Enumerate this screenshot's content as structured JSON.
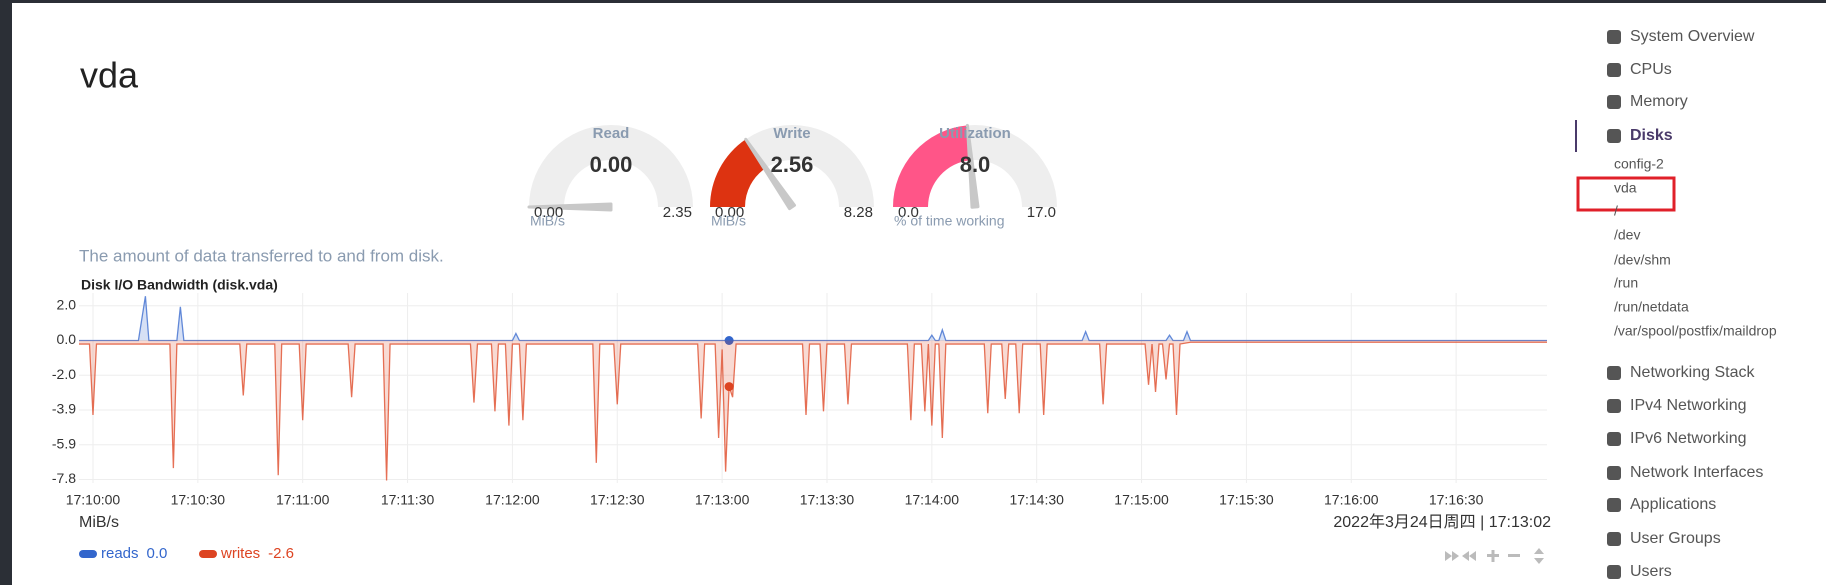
{
  "page": {
    "title": "vda",
    "description": "The amount of data transferred to and from disk.",
    "timestamp": "2022年3月24日周四 | 17:13:02"
  },
  "gauges": [
    {
      "title": "Read",
      "value": 0,
      "value_label": "0.00",
      "min": 0,
      "min_label": "0.00",
      "max": 2.35,
      "units": "MiB/s",
      "color": "#3366cc"
    },
    {
      "title": "Write",
      "value": 2.56,
      "min": 0,
      "min_label": "0.00",
      "max": 8.28,
      "units": "MiB/s",
      "color": "#dd3311"
    },
    {
      "title": "Utilization",
      "value": 8,
      "value_label": "8.0",
      "min": 0,
      "min_label": "0.0",
      "max": 17,
      "max_label": "17.0",
      "units": "% of time working",
      "color": "#ff5588"
    }
  ],
  "chart_data": {
    "type": "area",
    "title": "Disk I/O Bandwidth (disk.vda)",
    "y_label": "MiB/s",
    "xlim": [
      "17:09:56",
      "17:16:56"
    ],
    "xticks": [
      "17:10:00",
      "17:10:30",
      "17:11:00",
      "17:11:30",
      "17:12:00",
      "17:12:30",
      "17:13:00",
      "17:13:30",
      "17:14:00",
      "17:14:30",
      "17:15:00",
      "17:15:30",
      "17:16:00",
      "17:16:30"
    ],
    "ylim": [
      -8.04,
      2.68
    ],
    "yticks": [
      {
        "value": 1.96,
        "label": "2.0"
      },
      {
        "value": 0,
        "label": "0.0"
      },
      {
        "value": -1.96,
        "label": "-2.0"
      },
      {
        "value": -3.92,
        "label": "-3.9"
      },
      {
        "value": -5.88,
        "label": "-5.9"
      },
      {
        "value": -7.84,
        "label": "-7.8"
      }
    ],
    "grid": true,
    "series": [
      {
        "name": "reads",
        "color": "#3366cc",
        "current": 0,
        "current_label": "0.0",
        "x": [
          "17:09:56",
          "17:10:13",
          "17:10:15",
          "17:10:16",
          "17:10:24",
          "17:10:25",
          "17:10:26",
          "17:12:00",
          "17:12:01",
          "17:12:02",
          "17:13:59",
          "17:14:00",
          "17:14:01",
          "17:14:02",
          "17:14:03",
          "17:14:04",
          "17:14:43",
          "17:14:44",
          "17:14:45",
          "17:15:07",
          "17:15:08",
          "17:15:09",
          "17:15:12",
          "17:15:13",
          "17:15:14",
          "17:16:56"
        ],
        "values": [
          0,
          0,
          2.5,
          0,
          0,
          1.9,
          0,
          0,
          0.4,
          0,
          0,
          0.3,
          0,
          0,
          0.6,
          0,
          0,
          0.5,
          0,
          0,
          0.3,
          0,
          0,
          0.5,
          0,
          0
        ]
      },
      {
        "name": "writes",
        "color": "#dd4422",
        "current": -2.6,
        "x": [
          "17:09:56",
          "17:09:59",
          "17:10:00",
          "17:10:01",
          "17:10:22",
          "17:10:23",
          "17:10:24",
          "17:10:42",
          "17:10:43",
          "17:10:44",
          "17:10:52",
          "17:10:53",
          "17:10:54",
          "17:10:59",
          "17:11:00",
          "17:11:01",
          "17:11:13",
          "17:11:14",
          "17:11:15",
          "17:11:23",
          "17:11:24",
          "17:11:25",
          "17:11:48",
          "17:11:49",
          "17:11:50",
          "17:11:54",
          "17:11:55",
          "17:11:56",
          "17:11:58",
          "17:11:59",
          "17:12:00",
          "17:12:02",
          "17:12:03",
          "17:12:04",
          "17:12:23",
          "17:12:24",
          "17:12:25",
          "17:12:29",
          "17:12:30",
          "17:12:31",
          "17:12:53",
          "17:12:54",
          "17:12:55",
          "17:12:58",
          "17:12:59",
          "17:13:00",
          "17:13:01",
          "17:13:02",
          "17:13:03",
          "17:13:04",
          "17:13:23",
          "17:13:24",
          "17:13:25",
          "17:13:28",
          "17:13:29",
          "17:13:30",
          "17:13:35",
          "17:13:36",
          "17:13:37",
          "17:13:53",
          "17:13:54",
          "17:13:55",
          "17:13:57",
          "17:13:58",
          "17:13:59",
          "17:14:00",
          "17:14:01",
          "17:14:02",
          "17:14:03",
          "17:14:04",
          "17:14:15",
          "17:14:16",
          "17:14:17",
          "17:14:20",
          "17:14:21",
          "17:14:22",
          "17:14:24",
          "17:14:25",
          "17:14:26",
          "17:14:31",
          "17:14:32",
          "17:14:33",
          "17:14:48",
          "17:14:49",
          "17:14:50",
          "17:15:01",
          "17:15:02",
          "17:15:03",
          "17:15:04",
          "17:15:05",
          "17:15:06",
          "17:15:07",
          "17:15:08",
          "17:15:09",
          "17:15:10",
          "17:15:11",
          "17:15:14",
          "17:16:56"
        ],
        "values": [
          -0.2,
          -0.2,
          -4.2,
          -0.2,
          -0.2,
          -7.2,
          -0.2,
          -0.2,
          -3.1,
          -0.2,
          -0.2,
          -7.6,
          -0.2,
          -0.2,
          -4.5,
          -0.2,
          -0.2,
          -3.2,
          -0.2,
          -0.2,
          -7.9,
          -0.2,
          -0.2,
          -3.5,
          -0.2,
          -0.2,
          -4.0,
          -0.2,
          -0.2,
          -4.8,
          -0.2,
          -0.2,
          -4.5,
          -0.2,
          -0.2,
          -6.9,
          -0.2,
          -0.2,
          -3.6,
          -0.2,
          -0.2,
          -4.4,
          -0.2,
          -0.2,
          -5.5,
          -0.5,
          -7.4,
          -2.6,
          -3.2,
          -0.2,
          -0.2,
          -4.2,
          -0.2,
          -0.2,
          -4.0,
          -0.2,
          -0.2,
          -3.6,
          -0.2,
          -0.2,
          -4.5,
          -0.2,
          -0.2,
          -4.0,
          -0.2,
          -4.8,
          -0.2,
          -0.2,
          -5.5,
          -0.2,
          -0.2,
          -4.1,
          -0.2,
          -0.2,
          -3.3,
          -0.2,
          -0.2,
          -4.1,
          -0.2,
          -0.2,
          -4.2,
          -0.2,
          -0.2,
          -3.6,
          -0.2,
          -0.2,
          -2.5,
          -0.2,
          -2.9,
          -0.2,
          -0.2,
          -2.2,
          -0.2,
          -0.2,
          -4.2,
          -0.2,
          -0.1,
          -0.1
        ]
      }
    ]
  },
  "sidebar": {
    "items": [
      "System Overview",
      "CPUs",
      "Memory",
      "Disks"
    ],
    "active": "Disks",
    "subitems": [
      "config-2",
      "vda",
      "/",
      "/dev",
      "/dev/shm",
      "/run",
      "/run/netdata",
      "/var/spool/postfix/maildrop"
    ],
    "more": [
      "Networking Stack",
      "IPv4 Networking",
      "IPv6 Networking",
      "Network Interfaces",
      "Applications",
      "User Groups",
      "Users"
    ]
  }
}
